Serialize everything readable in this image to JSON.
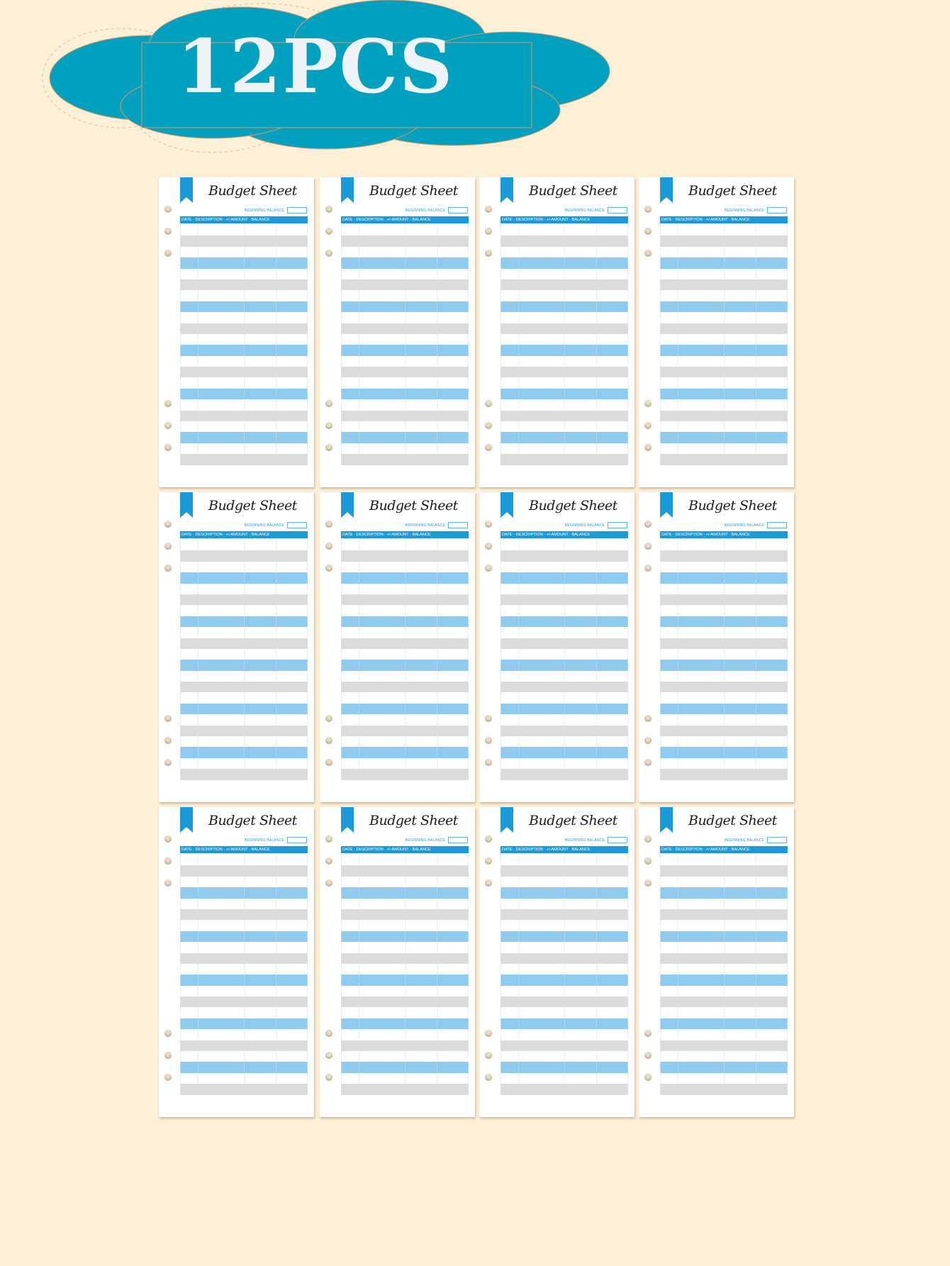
{
  "badge": {
    "text": "12PCS",
    "color": "#00a0c0"
  },
  "sheet": {
    "count": 12,
    "title": "Budget Sheet",
    "beginning_balance_label": "BEGINNING BALANCE",
    "columns": [
      "DATE",
      "DESCRIPTION",
      "+/-AMOUNT",
      "BALANCE"
    ],
    "row_pattern": [
      "white",
      "gray",
      "white",
      "blue"
    ],
    "rows": 22
  },
  "colors": {
    "background": "#fdf0d6",
    "accent": "#1d9ad6",
    "stripe_blue": "#8ecbee",
    "stripe_gray": "#dcdcdc"
  }
}
